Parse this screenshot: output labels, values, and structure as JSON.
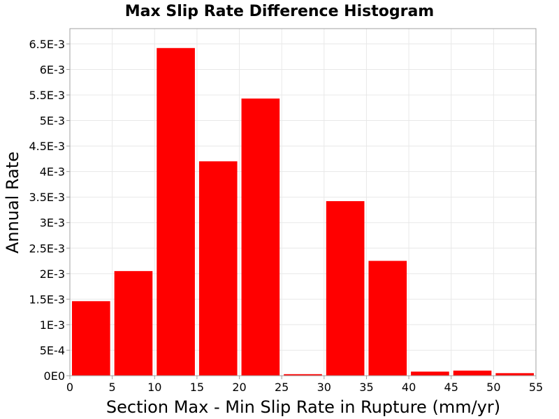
{
  "chart_data": {
    "type": "bar",
    "title": "Max Slip Rate Difference Histogram",
    "xlabel": "Section Max - Min Slip Rate in Rupture (mm/yr)",
    "ylabel": "Annual Rate",
    "xlim": [
      0,
      55
    ],
    "ylim": [
      0,
      0.0068
    ],
    "grid": true,
    "bar_color": "#ff0000",
    "x_ticks": [
      {
        "value": 0,
        "label": "0"
      },
      {
        "value": 5,
        "label": "5"
      },
      {
        "value": 10,
        "label": "10"
      },
      {
        "value": 15,
        "label": "15"
      },
      {
        "value": 20,
        "label": "20"
      },
      {
        "value": 25,
        "label": "25"
      },
      {
        "value": 30,
        "label": "30"
      },
      {
        "value": 35,
        "label": "35"
      },
      {
        "value": 40,
        "label": "40"
      },
      {
        "value": 45,
        "label": "45"
      },
      {
        "value": 50,
        "label": "50"
      },
      {
        "value": 55,
        "label": "55"
      }
    ],
    "y_ticks": [
      {
        "value": 0,
        "label": "0E0"
      },
      {
        "value": 0.0005,
        "label": "5E-4"
      },
      {
        "value": 0.001,
        "label": "1E-3"
      },
      {
        "value": 0.0015,
        "label": "1.5E-3"
      },
      {
        "value": 0.002,
        "label": "2E-3"
      },
      {
        "value": 0.0025,
        "label": "2.5E-3"
      },
      {
        "value": 0.003,
        "label": "3E-3"
      },
      {
        "value": 0.0035,
        "label": "3.5E-3"
      },
      {
        "value": 0.004,
        "label": "4E-3"
      },
      {
        "value": 0.0045,
        "label": "4.5E-3"
      },
      {
        "value": 0.005,
        "label": "5E-3"
      },
      {
        "value": 0.0055,
        "label": "5.5E-3"
      },
      {
        "value": 0.006,
        "label": "6E-3"
      },
      {
        "value": 0.0065,
        "label": "6.5E-3"
      }
    ],
    "bins": [
      {
        "x0": 0,
        "x1": 5,
        "value": 0.00146
      },
      {
        "x0": 5,
        "x1": 10,
        "value": 0.00205
      },
      {
        "x0": 10,
        "x1": 15,
        "value": 0.00642
      },
      {
        "x0": 15,
        "x1": 20,
        "value": 0.0042
      },
      {
        "x0": 20,
        "x1": 25,
        "value": 0.00543
      },
      {
        "x0": 25,
        "x1": 30,
        "value": 3e-05
      },
      {
        "x0": 30,
        "x1": 35,
        "value": 0.00342
      },
      {
        "x0": 35,
        "x1": 40,
        "value": 0.00225
      },
      {
        "x0": 40,
        "x1": 45,
        "value": 8e-05
      },
      {
        "x0": 45,
        "x1": 50,
        "value": 0.0001
      },
      {
        "x0": 50,
        "x1": 55,
        "value": 5e-05
      }
    ]
  }
}
